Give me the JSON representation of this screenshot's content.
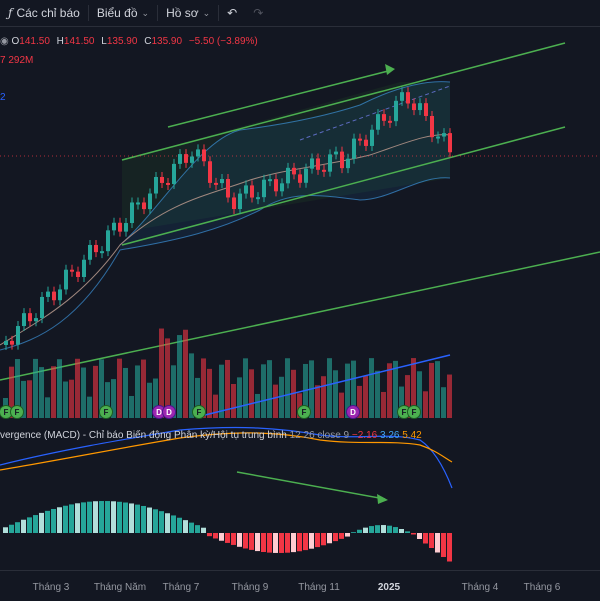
{
  "toolbar": {
    "indicators_label": "Các chỉ báo",
    "chart_label": "Biểu đồ",
    "profile_label": "Hồ sơ"
  },
  "ohlc": {
    "o_key": "O",
    "o_val": "141.50",
    "h_key": "H",
    "h_val": "141.50",
    "l_key": "L",
    "l_val": "135.90",
    "c_key": "C",
    "c_val": "135.90",
    "change": "−5.50 (−3.89%)"
  },
  "volume_text": "7 292M",
  "indicator2_text": "2",
  "macd": {
    "title": "vergence (MACD) - Chỉ báo Biến động Phân kỳ/Hội tụ trung bình",
    "params": "12 26 close 9",
    "val1": "−2.16",
    "val2": "3.26",
    "val3": "5.42"
  },
  "xaxis": [
    {
      "label": "Tháng 3",
      "bold": false
    },
    {
      "label": "Tháng Năm",
      "bold": false
    },
    {
      "label": "Tháng 7",
      "bold": false
    },
    {
      "label": "Tháng 9",
      "bold": false
    },
    {
      "label": "Tháng 11",
      "bold": false
    },
    {
      "label": "2025",
      "bold": true
    },
    {
      "label": "Tháng 4",
      "bold": false
    },
    {
      "label": "Tháng 6",
      "bold": false
    }
  ],
  "markers": [
    {
      "type": "F"
    },
    {
      "type": "F"
    },
    {
      "type": "F"
    },
    {
      "type": "D"
    },
    {
      "type": "D"
    },
    {
      "type": "F"
    },
    {
      "type": "F"
    },
    {
      "type": "D"
    },
    {
      "type": "F"
    },
    {
      "type": "F"
    }
  ],
  "colors": {
    "up": "#26a69a",
    "down": "#f23645",
    "channel": "#4caf50",
    "background": "#131722"
  }
}
